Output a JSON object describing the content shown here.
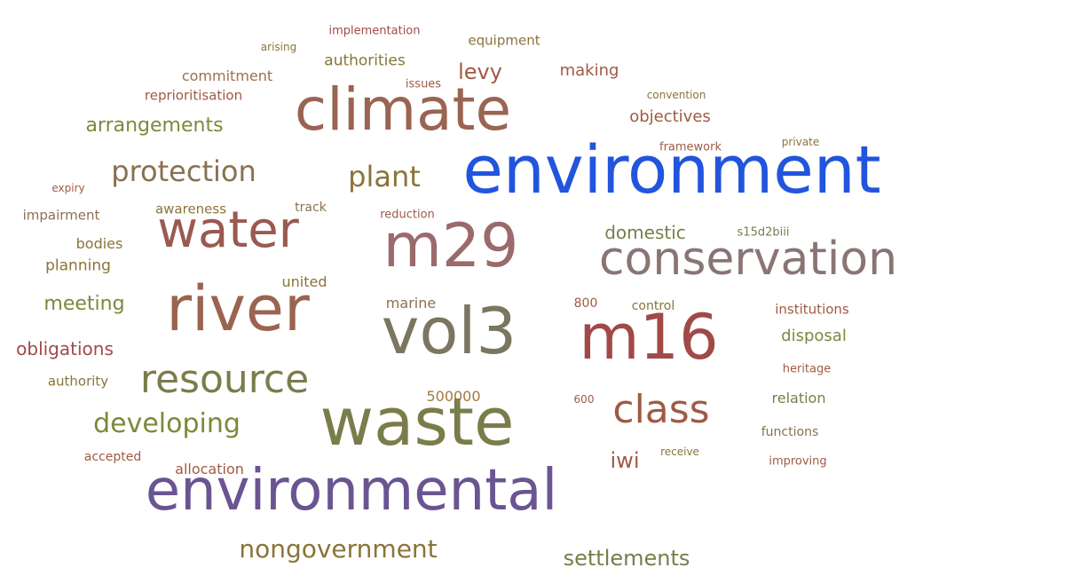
{
  "word_cloud": {
    "words": [
      {
        "text": "environment",
        "color": "#2255dd"
      },
      {
        "text": "waste",
        "color": "#7a7d4a"
      },
      {
        "text": "environmental",
        "color": "#6a5592"
      },
      {
        "text": "climate",
        "color": "#9a6452"
      },
      {
        "text": "m29",
        "color": "#9a6a6c"
      },
      {
        "text": "conservation",
        "color": "#8a7474"
      },
      {
        "text": "river",
        "color": "#9a6450"
      },
      {
        "text": "vol3",
        "color": "#7a7660"
      },
      {
        "text": "m16",
        "color": "#a04a48"
      },
      {
        "text": "water",
        "color": "#9a5a50"
      },
      {
        "text": "resource",
        "color": "#7a7d4a"
      },
      {
        "text": "class",
        "color": "#a05a44"
      },
      {
        "text": "protection",
        "color": "#8a7050"
      },
      {
        "text": "plant",
        "color": "#8a7438"
      },
      {
        "text": "developing",
        "color": "#7a8a3c"
      },
      {
        "text": "nongovernment",
        "color": "#8a7438"
      },
      {
        "text": "settlements",
        "color": "#7a7d4a"
      },
      {
        "text": "levy",
        "color": "#a05a44"
      },
      {
        "text": "arrangements",
        "color": "#7a8a3c"
      },
      {
        "text": "objectives",
        "color": "#a05a44"
      },
      {
        "text": "domestic",
        "color": "#7a7d4a"
      },
      {
        "text": "iwi",
        "color": "#a05a44"
      },
      {
        "text": "disposal",
        "color": "#7a8a3c"
      },
      {
        "text": "meeting",
        "color": "#7a8a3c"
      },
      {
        "text": "obligations",
        "color": "#a04a48"
      },
      {
        "text": "500000",
        "color": "#a07a3c"
      },
      {
        "text": "united",
        "color": "#8a7438"
      },
      {
        "text": "marine",
        "color": "#8a7050"
      },
      {
        "text": "making",
        "color": "#a05a44"
      },
      {
        "text": "authorities",
        "color": "#8a7438"
      },
      {
        "text": "planning",
        "color": "#8a7438"
      },
      {
        "text": "allocation",
        "color": "#a05a44"
      },
      {
        "text": "commitment",
        "color": "#9a7050"
      },
      {
        "text": "bodies",
        "color": "#8a7438"
      },
      {
        "text": "awareness",
        "color": "#8a7438"
      },
      {
        "text": "impairment",
        "color": "#8a7050"
      },
      {
        "text": "relation",
        "color": "#7a7d4a"
      },
      {
        "text": "equipment",
        "color": "#8a7438"
      },
      {
        "text": "reprioritisation",
        "color": "#a05a44"
      },
      {
        "text": "institutions",
        "color": "#a05a44"
      },
      {
        "text": "authority",
        "color": "#8a7438"
      },
      {
        "text": "track",
        "color": "#8a7050"
      },
      {
        "text": "functions",
        "color": "#8a7050"
      },
      {
        "text": "control",
        "color": "#8a7438"
      },
      {
        "text": "800",
        "color": "#a05a44"
      },
      {
        "text": "accepted",
        "color": "#a05a44"
      },
      {
        "text": "heritage",
        "color": "#a05a44"
      },
      {
        "text": "reduction",
        "color": "#a05a44"
      },
      {
        "text": "s15d2biii",
        "color": "#7a7d4a"
      },
      {
        "text": "improving",
        "color": "#a05a44"
      },
      {
        "text": "framework",
        "color": "#a05a44"
      },
      {
        "text": "issues",
        "color": "#a05a44"
      },
      {
        "text": "implementation",
        "color": "#a04a48"
      },
      {
        "text": "convention",
        "color": "#8a7438"
      },
      {
        "text": "receive",
        "color": "#8a7438"
      },
      {
        "text": "600",
        "color": "#a05a44"
      },
      {
        "text": "private",
        "color": "#8a7438"
      },
      {
        "text": "expiry",
        "color": "#a05a44"
      },
      {
        "text": "arising",
        "color": "#8a7438"
      }
    ]
  }
}
